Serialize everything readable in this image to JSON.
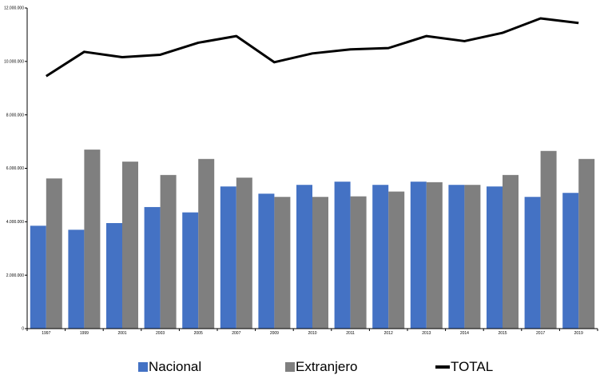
{
  "chart_data": {
    "type": "bar",
    "title": "",
    "xlabel": "",
    "ylabel": "",
    "categories": [
      "1997",
      "1999",
      "2001",
      "2003",
      "2005",
      "2007",
      "2009",
      "2010",
      "2011",
      "2012",
      "2013",
      "2014",
      "2015",
      "2017",
      "2019"
    ],
    "ylim": [
      0,
      12000000
    ],
    "y_ticks": [
      0,
      2000000,
      4000000,
      6000000,
      8000000,
      10000000,
      12000000
    ],
    "y_tick_labels": [
      "0",
      "2.000.000",
      "4.000.000",
      "6.000.000",
      "8.000.000",
      "10.000.000",
      "12.000.000"
    ],
    "grid": false,
    "legend_position": "bottom",
    "series": [
      {
        "name": "Nacional",
        "kind": "bar",
        "color": "#4472c4",
        "values": [
          3850000,
          3700000,
          3950000,
          4550000,
          4350000,
          5320000,
          5050000,
          5380000,
          5500000,
          5380000,
          5500000,
          5380000,
          5320000,
          4930000,
          5080000
        ]
      },
      {
        "name": "Extranjero",
        "kind": "bar",
        "color": "#7f7f7f",
        "values": [
          5620000,
          6700000,
          6250000,
          5750000,
          6350000,
          5650000,
          4930000,
          4930000,
          4950000,
          5130000,
          5480000,
          5380000,
          5750000,
          6650000,
          6350000
        ]
      },
      {
        "name": "TOTAL",
        "kind": "line",
        "color": "#000000",
        "values": [
          9450000,
          10360000,
          10160000,
          10250000,
          10700000,
          10950000,
          9970000,
          10300000,
          10450000,
          10500000,
          10950000,
          10760000,
          11070000,
          11610000,
          11440000
        ]
      }
    ]
  }
}
